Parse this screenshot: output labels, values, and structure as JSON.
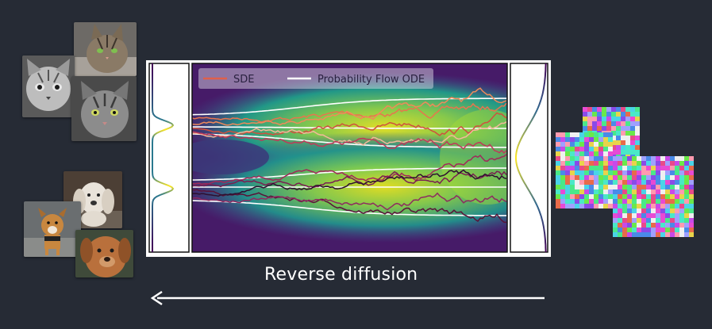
{
  "legend": {
    "sde_label": "SDE",
    "ode_label": "Probability Flow ODE"
  },
  "caption": "Reverse diffusion",
  "colors": {
    "background": "#262b35",
    "sde_legend": "#e0604a",
    "ode_legend": "#ffffff",
    "arrow": "#ffffff"
  },
  "icons": {
    "cats": [
      "cat-photo",
      "cat-photo",
      "cat-photo"
    ],
    "dogs": [
      "dog-photo",
      "dog-photo",
      "dog-photo"
    ],
    "noise": [
      "noise-image",
      "noise-image",
      "noise-image"
    ]
  }
}
